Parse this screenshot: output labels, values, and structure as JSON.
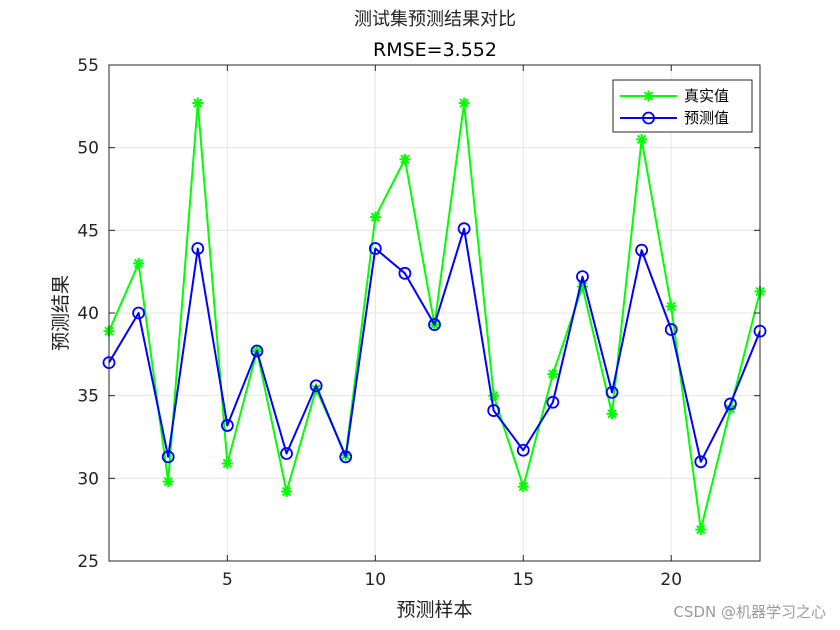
{
  "chart_data": {
    "type": "line",
    "title": "测试集预测结果对比",
    "subtitle": "RMSE=3.552",
    "xlabel": "预测样本",
    "ylabel": "预测结果",
    "xlim": [
      1,
      23
    ],
    "ylim": [
      25,
      55
    ],
    "xticks": [
      5,
      10,
      15,
      20
    ],
    "yticks": [
      25,
      30,
      35,
      40,
      45,
      50,
      55
    ],
    "grid": true,
    "legend_position": "top-right",
    "x": [
      1,
      2,
      3,
      4,
      5,
      6,
      7,
      8,
      9,
      10,
      11,
      12,
      13,
      14,
      15,
      16,
      17,
      18,
      19,
      20,
      21,
      22,
      23
    ],
    "series": [
      {
        "name": "真实值",
        "color": "#00ff00",
        "marker": "asterisk",
        "values": [
          38.9,
          43.0,
          29.8,
          52.7,
          30.9,
          37.7,
          29.2,
          35.4,
          31.4,
          45.8,
          49.3,
          39.3,
          52.7,
          35.0,
          29.5,
          36.3,
          41.6,
          33.9,
          50.5,
          40.4,
          26.9,
          34.2,
          41.3
        ]
      },
      {
        "name": "预测值",
        "color": "#0000ff",
        "marker": "circle",
        "values": [
          37.0,
          40.0,
          31.3,
          43.9,
          33.2,
          37.7,
          31.5,
          35.6,
          31.3,
          43.9,
          42.4,
          39.3,
          45.1,
          34.1,
          31.7,
          34.6,
          42.2,
          35.2,
          43.8,
          39.0,
          31.0,
          34.5,
          38.9
        ]
      }
    ]
  },
  "watermark": "CSDN @机器学习之心"
}
